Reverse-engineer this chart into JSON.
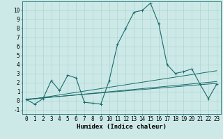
{
  "title": "",
  "xlabel": "Humidex (Indice chaleur)",
  "x_values": [
    0,
    1,
    2,
    3,
    4,
    5,
    6,
    7,
    8,
    9,
    10,
    11,
    12,
    13,
    14,
    15,
    16,
    17,
    18,
    19,
    20,
    21,
    22,
    23
  ],
  "main_line": [
    0.1,
    -0.4,
    0.2,
    2.2,
    1.1,
    2.8,
    2.5,
    -0.2,
    -0.3,
    -0.4,
    2.2,
    6.2,
    8.0,
    9.8,
    10.0,
    10.8,
    8.5,
    4.0,
    3.0,
    3.2,
    3.5,
    1.8,
    0.2,
    1.8
  ],
  "trend_line1_x": [
    0,
    23
  ],
  "trend_line1_y": [
    0.05,
    3.3
  ],
  "trend_line2_x": [
    0,
    23
  ],
  "trend_line2_y": [
    0.1,
    2.1
  ],
  "trend_line3_x": [
    0,
    23
  ],
  "trend_line3_y": [
    0.15,
    1.9
  ],
  "bg_color": "#cce9e8",
  "line_color": "#1a6b6b",
  "grid_color": "#aed4d3",
  "ylim": [
    -1.5,
    11.0
  ],
  "xlim": [
    -0.5,
    23.5
  ],
  "yticks": [
    -1,
    0,
    1,
    2,
    3,
    4,
    5,
    6,
    7,
    8,
    9,
    10
  ],
  "xticks": [
    0,
    1,
    2,
    3,
    4,
    5,
    6,
    7,
    8,
    9,
    10,
    11,
    12,
    13,
    14,
    15,
    16,
    17,
    18,
    19,
    20,
    21,
    22,
    23
  ],
  "tick_fontsize": 5.5,
  "label_fontsize": 6.5
}
